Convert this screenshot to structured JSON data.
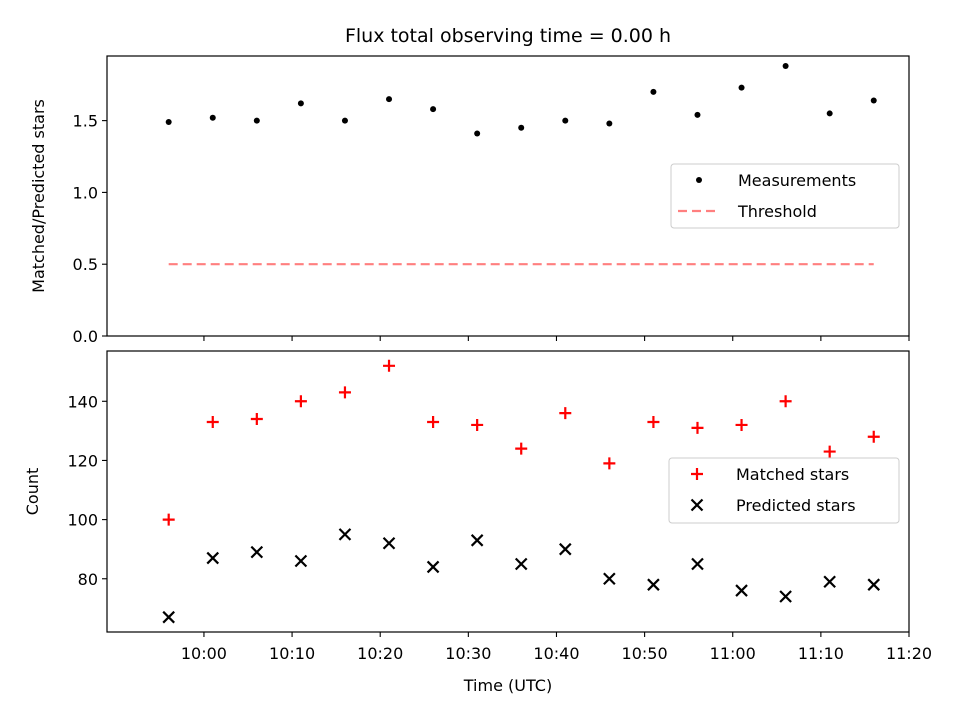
{
  "chart_data": [
    {
      "type": "scatter",
      "title": "Flux total observing time = 0.00 h",
      "xlabel": "",
      "ylabel": "Matched/Predicted stars",
      "ylim": [
        0,
        1.95
      ],
      "yticks": [
        0.0,
        0.5,
        1.0,
        1.5
      ],
      "ytick_labels": [
        "0.0",
        "0.5",
        "1.0",
        "1.5"
      ],
      "legend_position": "center-right",
      "series": [
        {
          "name": "Measurements",
          "kind": "scatter",
          "color": "#000000",
          "marker": "dot",
          "x": [
            "09:56",
            "10:01",
            "10:06",
            "10:11",
            "10:16",
            "10:21",
            "10:26",
            "10:31",
            "10:36",
            "10:41",
            "10:46",
            "10:51",
            "10:56",
            "11:01",
            "11:06",
            "11:11",
            "11:16"
          ],
          "values": [
            1.49,
            1.52,
            1.5,
            1.62,
            1.5,
            1.65,
            1.58,
            1.41,
            1.45,
            1.5,
            1.48,
            1.7,
            1.54,
            1.73,
            1.88,
            1.55,
            1.64
          ]
        },
        {
          "name": "Threshold",
          "kind": "line",
          "color": "#ff7f7f",
          "style": "dashed",
          "x": [
            "09:56",
            "11:16"
          ],
          "values": [
            0.5,
            0.5
          ]
        }
      ]
    },
    {
      "type": "scatter",
      "title": "",
      "xlabel": "Time (UTC)",
      "ylabel": "Count",
      "ylim": [
        62,
        157
      ],
      "yticks": [
        80,
        100,
        120,
        140
      ],
      "ytick_labels": [
        "80",
        "100",
        "120",
        "140"
      ],
      "xlim": [
        "09:49",
        "11:20"
      ],
      "xticks": [
        "10:00",
        "10:10",
        "10:20",
        "10:30",
        "10:40",
        "10:50",
        "11:00",
        "11:10",
        "11:20"
      ],
      "legend_position": "center-right",
      "series": [
        {
          "name": "Matched stars",
          "kind": "scatter",
          "color": "#ff0000",
          "marker": "plus",
          "x": [
            "09:56",
            "10:01",
            "10:06",
            "10:11",
            "10:16",
            "10:21",
            "10:26",
            "10:31",
            "10:36",
            "10:41",
            "10:46",
            "10:51",
            "10:56",
            "11:01",
            "11:06",
            "11:11",
            "11:16"
          ],
          "values": [
            100,
            133,
            134,
            140,
            143,
            152,
            133,
            132,
            124,
            136,
            119,
            133,
            131,
            132,
            140,
            123,
            128
          ]
        },
        {
          "name": "Predicted stars",
          "kind": "scatter",
          "color": "#000000",
          "marker": "x",
          "x": [
            "09:56",
            "10:01",
            "10:06",
            "10:11",
            "10:16",
            "10:21",
            "10:26",
            "10:31",
            "10:36",
            "10:41",
            "10:46",
            "10:51",
            "10:56",
            "11:01",
            "11:06",
            "11:11",
            "11:16"
          ],
          "values": [
            67,
            87,
            89,
            86,
            95,
            92,
            84,
            93,
            85,
            90,
            80,
            78,
            85,
            76,
            74,
            79,
            78
          ]
        }
      ]
    }
  ]
}
